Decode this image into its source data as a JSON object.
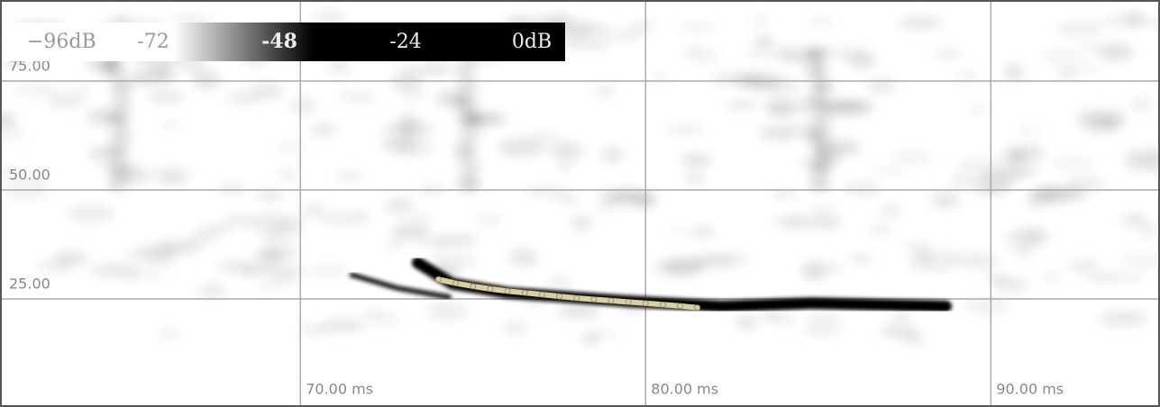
{
  "chart_data": {
    "type": "spectrogram",
    "xlim": [
      61.3,
      94.9
    ],
    "ylim": [
      0.2,
      93.6
    ],
    "xticks": [
      {
        "value": 70,
        "label": "70.00 ms"
      },
      {
        "value": 80,
        "label": "80.00 ms"
      },
      {
        "value": 90,
        "label": "90.00 ms"
      }
    ],
    "yticks": [
      {
        "value": 25,
        "label": "25.00"
      },
      {
        "value": 50,
        "label": "50.00"
      },
      {
        "value": 75,
        "label": "75.00"
      }
    ],
    "grid": true,
    "colorbar": {
      "colors": [
        "#ffffff",
        "#000000"
      ],
      "ticks": [
        {
          "value": -96,
          "label": "−96dB"
        },
        {
          "value": -72,
          "label": "-72"
        },
        {
          "value": -48,
          "label": "-48"
        },
        {
          "value": -24,
          "label": "-24"
        },
        {
          "value": 0,
          "label": "0dB"
        }
      ]
    },
    "series": [
      {
        "color": "#000000",
        "x": [
          73.4,
          74.4,
          76.0,
          79.6,
          82.2,
          84.8,
          88.7
        ],
        "values": [
          33.3,
          28.5,
          26.4,
          24.4,
          23.3,
          24.0,
          23.3
        ]
      },
      {
        "color": "#222222",
        "x": [
          71.5,
          72.8,
          74.3
        ],
        "values": [
          30.5,
          27.5,
          25.4
        ]
      },
      {
        "color": "#d8d0a2",
        "x": [
          74.0,
          74.5,
          75.0,
          75.5,
          76.0,
          76.5,
          77.0,
          77.5,
          78.0,
          78.5,
          79.0,
          79.5,
          80.0,
          80.5,
          81.0,
          81.5
        ],
        "values": [
          29.5,
          28.6,
          27.9,
          27.3,
          26.8,
          26.4,
          26.0,
          25.6,
          25.2,
          24.9,
          24.6,
          24.3,
          24.0,
          23.7,
          23.4,
          23.0
        ]
      }
    ]
  }
}
